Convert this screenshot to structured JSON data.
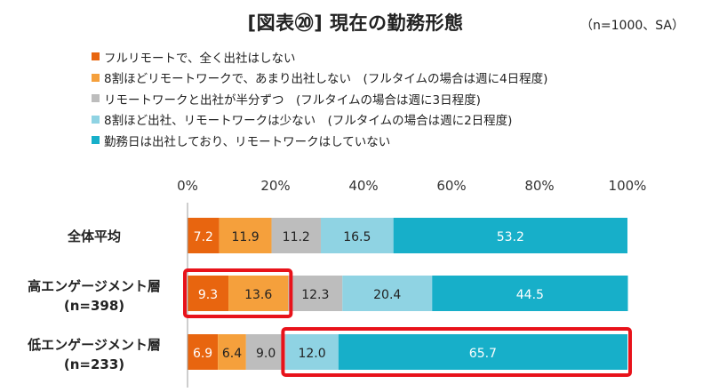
{
  "chart_data": {
    "type": "bar",
    "orientation": "horizontal-stacked",
    "title": "[図表⑳] 現在の勤務形態",
    "note": "（n=1000、SA）",
    "x_ticks": [
      "0%",
      "20%",
      "40%",
      "60%",
      "80%",
      "100%"
    ],
    "xlim": [
      0,
      100
    ],
    "categories": [
      {
        "line1": "全体平均",
        "line2": ""
      },
      {
        "line1": "高エンゲージメント層",
        "line2": "(n=398)"
      },
      {
        "line1": "低エンゲージメント層",
        "line2": "(n=233)"
      }
    ],
    "series": [
      {
        "name": "フルリモートで、全く出社はしない",
        "color": "#E8650F",
        "label_color": "#ffffff",
        "values": [
          7.2,
          9.3,
          6.9
        ]
      },
      {
        "name": "8割ほどリモートワークで、あまり出社しない　(フルタイムの場合は週に4日程度)",
        "color": "#F5A03C",
        "label_color": "#222222",
        "values": [
          11.9,
          13.6,
          6.4
        ]
      },
      {
        "name": "リモートワークと出社が半分ずつ　(フルタイムの場合は週に3日程度)",
        "color": "#BDBDBD",
        "label_color": "#222222",
        "values": [
          11.2,
          12.3,
          9.0
        ]
      },
      {
        "name": "8割ほど出社、リモートワークは少ない　(フルタイムの場合は週に2日程度)",
        "color": "#8FD3E3",
        "label_color": "#222222",
        "values": [
          16.5,
          20.4,
          12.0
        ]
      },
      {
        "name": "勤務日は出社しており、リモートワークはしていない",
        "color": "#17AFC9",
        "label_color": "#ffffff",
        "values": [
          53.2,
          44.5,
          65.7
        ]
      }
    ],
    "data_labels": [
      [
        "7.2",
        "11.9",
        "11.2",
        "16.5",
        "53.2"
      ],
      [
        "9.3",
        "13.6",
        "12.3",
        "20.4",
        "44.5"
      ],
      [
        "6.9",
        "6.4",
        "9.0",
        "12.0",
        "65.7"
      ]
    ],
    "highlights": [
      {
        "row": 1,
        "from_series": 0,
        "to_series": 1,
        "color": "#E8121A"
      },
      {
        "row": 2,
        "from_series": 3,
        "to_series": 4,
        "color": "#E8121A"
      }
    ],
    "legend_position": "top",
    "grid": false
  }
}
